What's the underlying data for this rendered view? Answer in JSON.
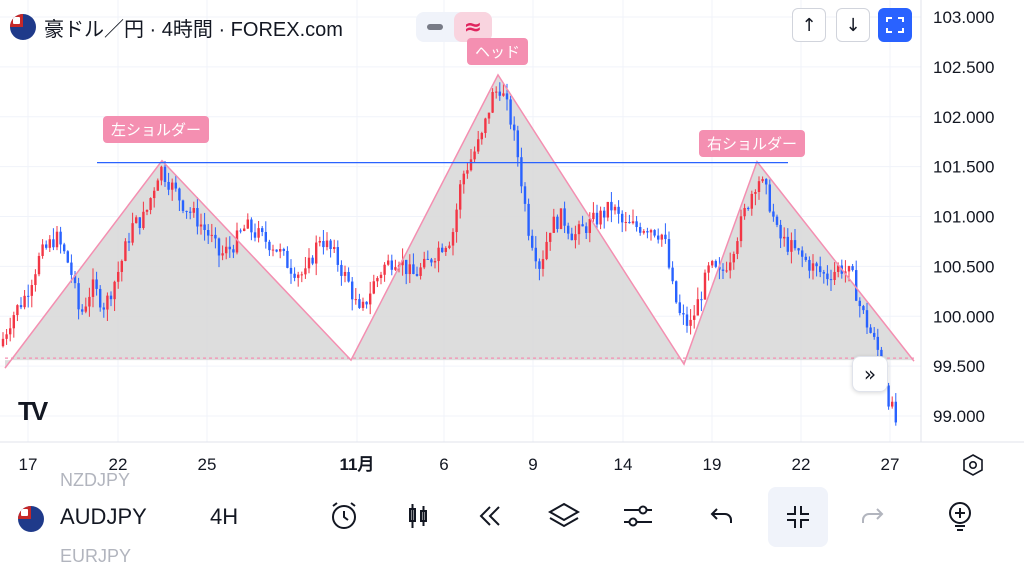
{
  "header": {
    "title": "豪ドル／円 · 4時間 · FOREX.com",
    "indicator_minus_icon": "minus-icon",
    "indicator_approx": "≈",
    "up_arrow": "↑",
    "down_arrow": "↓"
  },
  "labels": {
    "left_shoulder": "左ショルダー",
    "head": "ヘッド",
    "right_shoulder": "右ショルダー"
  },
  "chart_data": {
    "type": "candlestick",
    "title": "豪ドル／円 · 4時間 · FOREX.com",
    "xlabel": "",
    "ylabel": "",
    "y_ticks": [
      "103.000",
      "102.500",
      "102.000",
      "101.500",
      "101.000",
      "100.500",
      "100.000",
      "99.500",
      "99.000"
    ],
    "ylim": [
      98.7,
      103.0
    ],
    "x_ticks": [
      "17",
      "22",
      "25",
      "11月",
      "6",
      "9",
      "14",
      "19",
      "22",
      "27"
    ],
    "grid": true,
    "up_color": "#f23645",
    "down_color": "#2962ff",
    "pattern": "head-and-shoulders",
    "neckline_price": 101.54,
    "baseline_price": 99.58,
    "triangle_points": [
      {
        "x_tick": "17",
        "price": 99.48
      },
      {
        "x_tick": "22",
        "price": 101.56
      },
      {
        "x_tick": "25",
        "price": 99.56
      },
      {
        "x_tick": "6",
        "price": 102.42
      },
      {
        "x_tick": "19",
        "price": 99.52
      },
      {
        "x_tick": "22",
        "price": 101.55
      },
      {
        "x_tick": "27",
        "price": 99.55
      }
    ],
    "path_anchors": [
      [
        0,
        99.7
      ],
      [
        12,
        100.0
      ],
      [
        25,
        100.2
      ],
      [
        40,
        100.6
      ],
      [
        56,
        100.8
      ],
      [
        70,
        100.5
      ],
      [
        80,
        100.0
      ],
      [
        92,
        100.3
      ],
      [
        105,
        100.1
      ],
      [
        120,
        100.5
      ],
      [
        132,
        100.9
      ],
      [
        145,
        101.0
      ],
      [
        160,
        101.5
      ],
      [
        172,
        101.3
      ],
      [
        185,
        101.1
      ],
      [
        195,
        101.0
      ],
      [
        210,
        100.8
      ],
      [
        220,
        100.6
      ],
      [
        232,
        100.7
      ],
      [
        246,
        100.9
      ],
      [
        260,
        100.8
      ],
      [
        275,
        100.7
      ],
      [
        290,
        100.5
      ],
      [
        305,
        100.4
      ],
      [
        320,
        100.8
      ],
      [
        335,
        100.6
      ],
      [
        350,
        100.3
      ],
      [
        360,
        100.0
      ],
      [
        372,
        100.3
      ],
      [
        384,
        100.5
      ],
      [
        398,
        100.6
      ],
      [
        412,
        100.4
      ],
      [
        425,
        100.5
      ],
      [
        440,
        100.7
      ],
      [
        452,
        100.8
      ],
      [
        462,
        101.4
      ],
      [
        472,
        101.6
      ],
      [
        482,
        101.8
      ],
      [
        492,
        102.2
      ],
      [
        500,
        102.3
      ],
      [
        510,
        102.0
      ],
      [
        518,
        101.6
      ],
      [
        528,
        100.9
      ],
      [
        540,
        100.5
      ],
      [
        550,
        100.9
      ],
      [
        562,
        101.0
      ],
      [
        574,
        100.8
      ],
      [
        586,
        100.9
      ],
      [
        600,
        101.0
      ],
      [
        612,
        101.1
      ],
      [
        624,
        100.9
      ],
      [
        636,
        100.9
      ],
      [
        650,
        100.9
      ],
      [
        664,
        100.8
      ],
      [
        672,
        100.3
      ],
      [
        680,
        100.0
      ],
      [
        690,
        99.9
      ],
      [
        700,
        100.2
      ],
      [
        710,
        100.5
      ],
      [
        720,
        100.4
      ],
      [
        730,
        100.6
      ],
      [
        740,
        100.9
      ],
      [
        750,
        101.2
      ],
      [
        758,
        101.4
      ],
      [
        768,
        101.2
      ],
      [
        778,
        100.8
      ],
      [
        790,
        100.7
      ],
      [
        800,
        100.6
      ],
      [
        812,
        100.5
      ],
      [
        826,
        100.4
      ],
      [
        840,
        100.5
      ],
      [
        852,
        100.4
      ],
      [
        860,
        100.1
      ],
      [
        872,
        99.8
      ],
      [
        880,
        99.6
      ],
      [
        888,
        99.2
      ],
      [
        900,
        98.8
      ]
    ]
  },
  "toolbar": {
    "symbol": "AUDJPY",
    "timeframe": "4H",
    "ghost_above": "NZDJPY",
    "ghost_below": "EURJPY",
    "tools": [
      "alarm-clock-icon",
      "candles-icon",
      "replay-icon",
      "layers-icon",
      "sliders-icon",
      "undo-icon",
      "minimize-icon",
      "redo-icon",
      "idea-icon"
    ]
  },
  "goto_realtime": "»"
}
